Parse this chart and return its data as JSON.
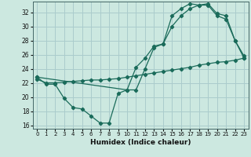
{
  "title": "",
  "xlabel": "Humidex (Indice chaleur)",
  "bg_color": "#cce8e0",
  "grid_color": "#aacccc",
  "line_color": "#1a6b5a",
  "xlim": [
    -0.5,
    23.5
  ],
  "ylim": [
    15.5,
    33.5
  ],
  "yticks": [
    16,
    18,
    20,
    22,
    24,
    26,
    28,
    30,
    32
  ],
  "xticks": [
    0,
    1,
    2,
    3,
    4,
    5,
    6,
    7,
    8,
    9,
    10,
    11,
    12,
    13,
    14,
    15,
    16,
    17,
    18,
    19,
    20,
    21,
    22,
    23
  ],
  "line1_x": [
    0,
    1,
    2,
    3,
    4,
    5,
    6,
    7,
    8,
    9,
    10,
    11,
    12,
    13,
    14,
    15,
    16,
    17,
    18,
    19,
    20,
    21,
    22,
    23
  ],
  "line1_y": [
    22.8,
    21.8,
    21.8,
    19.8,
    18.5,
    18.3,
    17.3,
    16.3,
    16.3,
    20.5,
    21.0,
    21.0,
    24.0,
    27.0,
    27.5,
    30.0,
    31.5,
    32.5,
    33.0,
    33.0,
    31.5,
    31.0,
    28.0,
    25.5
  ],
  "line2_x": [
    0,
    1,
    2,
    3,
    4,
    5,
    6,
    7,
    8,
    9,
    10,
    11,
    12,
    13,
    14,
    15,
    16,
    17,
    18,
    19,
    20,
    21,
    22,
    23
  ],
  "line2_y": [
    22.5,
    22.0,
    22.0,
    22.1,
    22.2,
    22.3,
    22.4,
    22.4,
    22.5,
    22.6,
    22.8,
    23.0,
    23.2,
    23.4,
    23.6,
    23.8,
    24.0,
    24.2,
    24.5,
    24.7,
    24.9,
    25.0,
    25.2,
    25.5
  ],
  "line3_x": [
    0,
    10,
    11,
    12,
    13,
    14,
    15,
    16,
    17,
    18,
    19,
    20,
    21,
    22,
    23
  ],
  "line3_y": [
    22.8,
    21.0,
    24.2,
    25.5,
    27.2,
    27.5,
    31.5,
    32.5,
    33.2,
    33.0,
    33.2,
    31.8,
    31.5,
    28.0,
    25.8
  ],
  "xtick_fontsize": 5,
  "ytick_fontsize": 5.5,
  "xlabel_fontsize": 6.5,
  "lw": 0.9,
  "ms": 2.2
}
